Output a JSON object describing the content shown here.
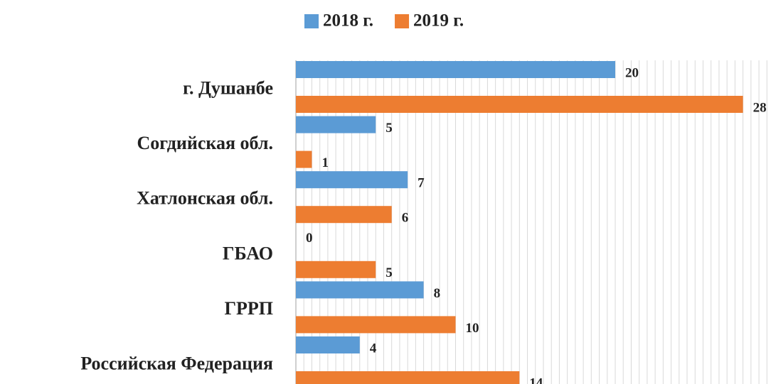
{
  "chart_data": {
    "type": "bar",
    "orientation": "horizontal",
    "categories": [
      "г. Душанбе",
      "Согдийская обл.",
      "Хатлонская обл.",
      "ГБАО",
      "ГРРП",
      "Российская Федерация"
    ],
    "series": [
      {
        "name": "2018 г.",
        "color": "#5b9bd5",
        "values": [
          20,
          5,
          7,
          0,
          8,
          4
        ]
      },
      {
        "name": "2019 г.",
        "color": "#ed7d31",
        "values": [
          28,
          1,
          6,
          5,
          10,
          14
        ]
      }
    ],
    "xlim": [
      0,
      30
    ],
    "grid": true,
    "legend": "top"
  }
}
